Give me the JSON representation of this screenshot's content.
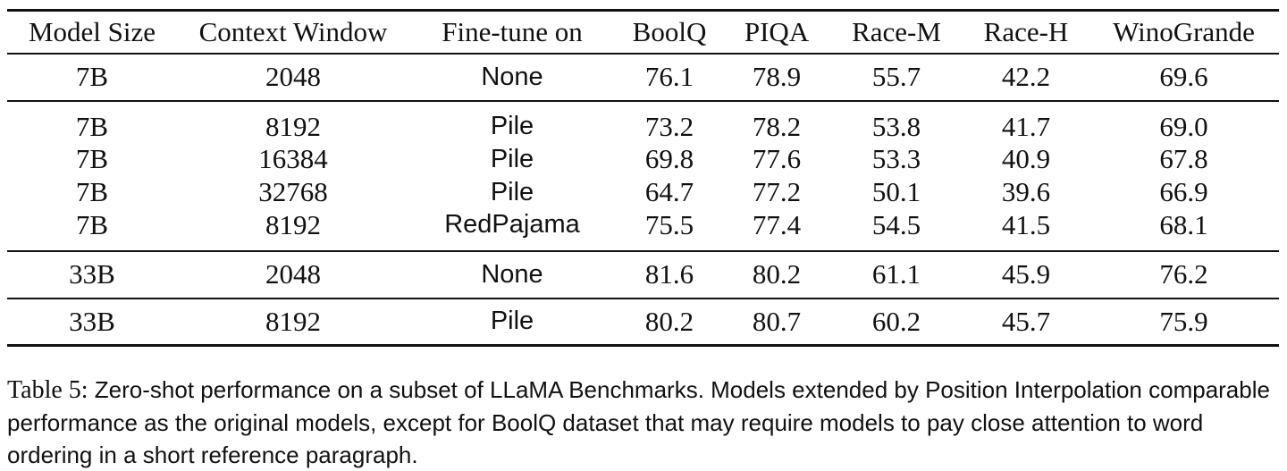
{
  "table": {
    "headers": [
      "Model Size",
      "Context Window",
      "Fine-tune on",
      "BoolQ",
      "PIQA",
      "Race-M",
      "Race-H",
      "WinoGrande"
    ],
    "groups": [
      [
        [
          "7B",
          "2048",
          "None",
          "76.1",
          "78.9",
          "55.7",
          "42.2",
          "69.6"
        ]
      ],
      [
        [
          "7B",
          "8192",
          "Pile",
          "73.2",
          "78.2",
          "53.8",
          "41.7",
          "69.0"
        ],
        [
          "7B",
          "16384",
          "Pile",
          "69.8",
          "77.6",
          "53.3",
          "40.9",
          "67.8"
        ],
        [
          "7B",
          "32768",
          "Pile",
          "64.7",
          "77.2",
          "50.1",
          "39.6",
          "66.9"
        ],
        [
          "7B",
          "8192",
          "RedPajama",
          "75.5",
          "77.4",
          "54.5",
          "41.5",
          "68.1"
        ]
      ],
      [
        [
          "33B",
          "2048",
          "None",
          "81.6",
          "80.2",
          "61.1",
          "45.9",
          "76.2"
        ]
      ],
      [
        [
          "33B",
          "8192",
          "Pile",
          "80.2",
          "80.7",
          "60.2",
          "45.7",
          "75.9"
        ]
      ]
    ]
  },
  "caption": {
    "label": "Table 5:",
    "text": "Zero-shot performance on a subset of LLaMA Benchmarks. Models extended by Position Interpolation comparable performance as the original models, except for BoolQ dataset that may require models to pay close attention to word ordering in a short reference paragraph."
  }
}
